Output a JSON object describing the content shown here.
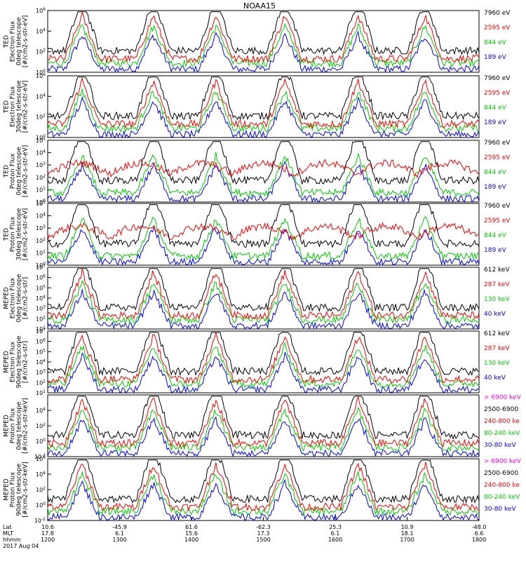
{
  "chart_data": {
    "title": "NOAA15",
    "type": "line",
    "x_axis": {
      "rows": [
        {
          "label": "Lat",
          "values": [
            "10.6",
            "-45.9",
            "61.6",
            "-62.3",
            "25.3",
            "10.9",
            "-48.0"
          ]
        },
        {
          "label": "MLT",
          "values": [
            "17.8",
            "6.1",
            "15.6",
            "17.3",
            "6.1",
            "18.1",
            "6.6"
          ]
        },
        {
          "label": "hhmm",
          "values": [
            "1200",
            "1300",
            "1400",
            "1500",
            "1600",
            "1700",
            "1800"
          ]
        }
      ],
      "date": "2017 Aug 04"
    },
    "panels": [
      {
        "ylabel": [
          "TED",
          "Electron Flux",
          "0deg telescope",
          "[#/cm2-s-str-eV]"
        ],
        "ylim_exp": [
          0,
          6
        ],
        "tick_exps": [
          0,
          2,
          4,
          6
        ],
        "channels": [
          {
            "name": "7960 eV",
            "color": "#000000"
          },
          {
            "name": "2595 eV",
            "color": "#ff0000"
          },
          {
            "name": "844 eV",
            "color": "#00cc00"
          },
          {
            "name": "189 eV",
            "color": "#0000ff"
          }
        ]
      },
      {
        "ylabel": [
          "TED",
          "Electron Flux",
          "30deg telescope",
          "[#/cm2-s-str-eV]"
        ],
        "ylim_exp": [
          0,
          6
        ],
        "tick_exps": [
          0,
          2,
          4,
          6
        ],
        "channels": [
          {
            "name": "7960 eV",
            "color": "#000000"
          },
          {
            "name": "2595 eV",
            "color": "#ff0000"
          },
          {
            "name": "844 eV",
            "color": "#00cc00"
          },
          {
            "name": "189 eV",
            "color": "#0000ff"
          }
        ]
      },
      {
        "ylabel": [
          "TED",
          "Proton Flux",
          "0deg telescope",
          "[#/cm2-s-str-eV]"
        ],
        "ylim_exp": [
          0,
          5
        ],
        "tick_exps": [
          0,
          1,
          2,
          3,
          4,
          5
        ],
        "channels": [
          {
            "name": "7960 eV",
            "color": "#000000"
          },
          {
            "name": "2595 eV",
            "color": "#ff0000"
          },
          {
            "name": "844 eV",
            "color": "#00cc00"
          },
          {
            "name": "189 eV",
            "color": "#0000ff"
          }
        ]
      },
      {
        "ylabel": [
          "TED",
          "Proton Flux",
          "30deg telescope",
          "[#/cm2-s-str-eV]"
        ],
        "ylim_exp": [
          0,
          5
        ],
        "tick_exps": [
          0,
          1,
          2,
          3,
          4,
          5
        ],
        "channels": [
          {
            "name": "7960 eV",
            "color": "#000000"
          },
          {
            "name": "2595 eV",
            "color": "#ff0000"
          },
          {
            "name": "844 eV",
            "color": "#00cc00"
          },
          {
            "name": "189 eV",
            "color": "#0000ff"
          }
        ]
      },
      {
        "ylabel": [
          "MEPED",
          "Electron Flux",
          "0deg telescope",
          "[#/cm2-s-str]"
        ],
        "ylim_exp": [
          1,
          7
        ],
        "tick_exps": [
          1,
          2,
          3,
          4,
          5,
          6,
          7
        ],
        "channels": [
          {
            "name": "612 keV",
            "color": "#000000"
          },
          {
            "name": "287 keV",
            "color": "#ff0000"
          },
          {
            "name": "130 keV",
            "color": "#00cc00"
          },
          {
            "name": "40 keV",
            "color": "#0000ff"
          }
        ]
      },
      {
        "ylabel": [
          "MEPED",
          "Electron Flux",
          "90deg telescope",
          "[#/cm2-s-str]"
        ],
        "ylim_exp": [
          1,
          7
        ],
        "tick_exps": [
          1,
          2,
          3,
          4,
          5,
          6,
          7
        ],
        "channels": [
          {
            "name": "612 keV",
            "color": "#000000"
          },
          {
            "name": "287 keV",
            "color": "#ff0000"
          },
          {
            "name": "130 keV",
            "color": "#00cc00"
          },
          {
            "name": "40 keV",
            "color": "#0000ff"
          }
        ]
      },
      {
        "ylabel": [
          "MEPED",
          "Proton Flux",
          "0deg telescope",
          "[#/cm2-s-str-keV]"
        ],
        "ylim_exp": [
          -2,
          6
        ],
        "tick_exps": [
          -2,
          0,
          2,
          4
        ],
        "channels": [
          {
            "name": "> 6900 keV",
            "color": "#ff00ff"
          },
          {
            "name": "2500-6900",
            "color": "#000000"
          },
          {
            "name": "240-800 ke",
            "color": "#ff0000"
          },
          {
            "name": "80-240 keV",
            "color": "#00cc00"
          },
          {
            "name": "30-80 keV",
            "color": "#0000ff"
          }
        ]
      },
      {
        "ylabel": [
          "MEPED",
          "Proton Flux",
          "90deg telescope",
          "[#/cm2-s-str-keV]"
        ],
        "ylim_exp": [
          -2,
          6
        ],
        "tick_exps": [
          -2,
          0,
          2,
          4,
          6
        ],
        "channels": [
          {
            "name": "> 6900 keV",
            "color": "#ff00ff"
          },
          {
            "name": "2500-6900",
            "color": "#000000"
          },
          {
            "name": "240-800 ke",
            "color": "#ff0000"
          },
          {
            "name": "80-240 keV",
            "color": "#00cc00"
          },
          {
            "name": "30-80 keV",
            "color": "#0000ff"
          }
        ]
      }
    ]
  }
}
